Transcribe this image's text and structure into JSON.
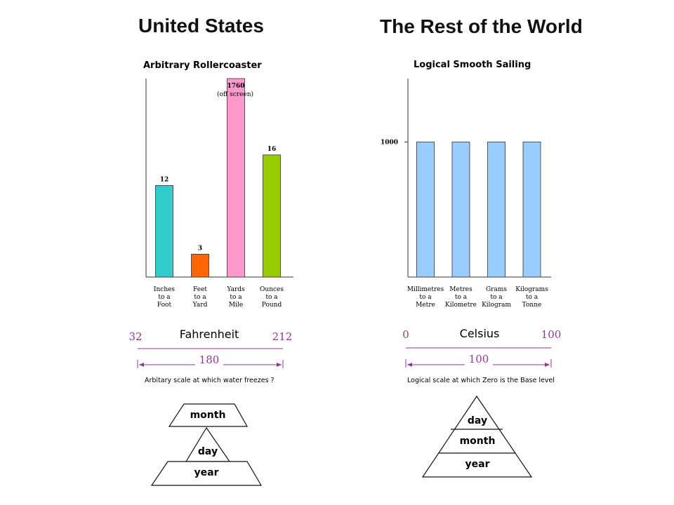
{
  "headings": {
    "left": "United States",
    "right": "The Rest of the World"
  },
  "chart_data": [
    {
      "type": "bar",
      "title": "Arbitrary Rollercoaster",
      "categories": [
        [
          "Inches",
          "to a",
          "Foot"
        ],
        [
          "Feet",
          "to a",
          "Yard"
        ],
        [
          "Yards",
          "to a",
          "Mile"
        ],
        [
          "Ounces",
          "to a",
          "Pound"
        ]
      ],
      "values": [
        12,
        3,
        1760,
        16
      ],
      "data_labels": [
        "12",
        "3",
        "1760",
        "16"
      ],
      "annotation": "(off screen)",
      "colors": [
        "#33cccc",
        "#ff6600",
        "#ff99cc",
        "#99cc00"
      ],
      "ylim": [
        0,
        26
      ],
      "yticks": []
    },
    {
      "type": "bar",
      "title": "Logical Smooth Sailing",
      "categories": [
        [
          "Millimetres",
          "to a",
          "Metre"
        ],
        [
          "Metres",
          "to a",
          "Kilometre"
        ],
        [
          "Grams",
          "to a",
          "Kilogram"
        ],
        [
          "Kilograms",
          "to a",
          "Tonne"
        ]
      ],
      "values": [
        1000,
        1000,
        1000,
        1000
      ],
      "colors": [
        "#99ccff",
        "#99ccff",
        "#99ccff",
        "#99ccff"
      ],
      "ylim": [
        0,
        1470
      ],
      "yticks": [
        1000
      ],
      "ytick_labels": [
        "1000"
      ]
    }
  ],
  "scales": {
    "fahrenheit": {
      "label": "Fahrenheit",
      "low": "32",
      "high": "212",
      "span": "180",
      "caption": "Arbitary scale at which water freezes ?"
    },
    "celsius": {
      "label": "Celsius",
      "low": "0",
      "high": "100",
      "span": "100",
      "caption": "Logical scale at which Zero is the Base level"
    }
  },
  "date_formats": {
    "us": [
      "month",
      "day",
      "year"
    ],
    "world": [
      "day",
      "month",
      "year"
    ]
  },
  "colors": {
    "purple": "#8b3a8b"
  }
}
